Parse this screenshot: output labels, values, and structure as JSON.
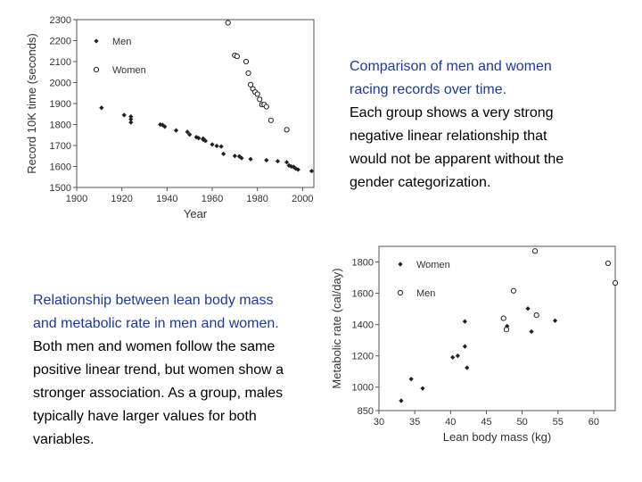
{
  "captions": {
    "top": {
      "lines_highlight": [
        "Comparison of men and women",
        "racing records over time."
      ],
      "lines_body": [
        "Each group shows a very strong",
        "negative linear relationship that",
        "would not be apparent without the",
        "gender categorization."
      ]
    },
    "bottom": {
      "lines_highlight": [
        "Relationship between lean body mass",
        "and metabolic rate in men and women."
      ],
      "lines_body": [
        "Both men and women follow the same",
        "positive linear trend, but women show a",
        "stronger association. As a group, males",
        "typically have larger values for both",
        "variables."
      ]
    }
  },
  "colors": {
    "highlight": "#1f3a93",
    "axis": "#555555",
    "text": "#333333"
  },
  "chart_data": [
    {
      "type": "scatter",
      "xlabel": "Year",
      "ylabel": "Record 10K time (seconds)",
      "xlim": [
        1900,
        2005
      ],
      "ylim": [
        1500,
        2300
      ],
      "xticks": [
        1900,
        1920,
        1940,
        1960,
        1980,
        2000
      ],
      "yticks": [
        1500,
        1600,
        1700,
        1800,
        1900,
        2000,
        2100,
        2200,
        2300
      ],
      "legend": "top-left",
      "series": [
        {
          "name": "Men",
          "marker": "diamond",
          "x": [
            1911,
            1921,
            1924,
            1924,
            1924,
            1937,
            1938,
            1939,
            1944,
            1949,
            1950,
            1953,
            1954,
            1956,
            1956,
            1957,
            1960,
            1962,
            1964,
            1965,
            1970,
            1972,
            1973,
            1977,
            1984,
            1989,
            1993,
            1994,
            1995,
            1996,
            1997,
            1998,
            2004
          ],
          "y": [
            1880,
            1845,
            1838,
            1825,
            1810,
            1800,
            1798,
            1790,
            1772,
            1765,
            1752,
            1740,
            1735,
            1733,
            1728,
            1722,
            1705,
            1698,
            1695,
            1660,
            1650,
            1648,
            1640,
            1635,
            1630,
            1625,
            1620,
            1605,
            1600,
            1598,
            1590,
            1585,
            1578
          ]
        },
        {
          "name": "Women",
          "marker": "circle",
          "x": [
            1967,
            1970,
            1971,
            1975,
            1976,
            1977,
            1978,
            1979,
            1980,
            1981,
            1982,
            1983,
            1984,
            1986,
            1993
          ],
          "y": [
            2285,
            2130,
            2125,
            2100,
            2045,
            1990,
            1970,
            1955,
            1945,
            1920,
            1895,
            1895,
            1885,
            1820,
            1775
          ]
        }
      ]
    },
    {
      "type": "scatter",
      "xlabel": "Lean body mass (kg)",
      "ylabel": "Metabolic rate (cal/day)",
      "xlim": [
        30,
        63
      ],
      "ylim": [
        850,
        1900
      ],
      "xticks": [
        30,
        35,
        40,
        45,
        50,
        55,
        60
      ],
      "yticks": [
        850,
        1000,
        1200,
        1400,
        1600,
        1800
      ],
      "legend": "top-left",
      "series": [
        {
          "name": "Women",
          "marker": "diamond",
          "x": [
            33.1,
            34.5,
            36.1,
            40.3,
            41.0,
            42.0,
            42.0,
            42.3,
            47.9,
            50.8,
            51.3,
            54.6
          ],
          "y": [
            913,
            1052,
            992,
            1190,
            1200,
            1260,
            1420,
            1124,
            1390,
            1502,
            1355,
            1425
          ]
        },
        {
          "name": "Men",
          "marker": "circle",
          "x": [
            47.4,
            47.8,
            48.8,
            51.8,
            52.0,
            62.0,
            63.0
          ],
          "y": [
            1440,
            1368,
            1616,
            1870,
            1460,
            1792,
            1666
          ]
        }
      ]
    }
  ]
}
